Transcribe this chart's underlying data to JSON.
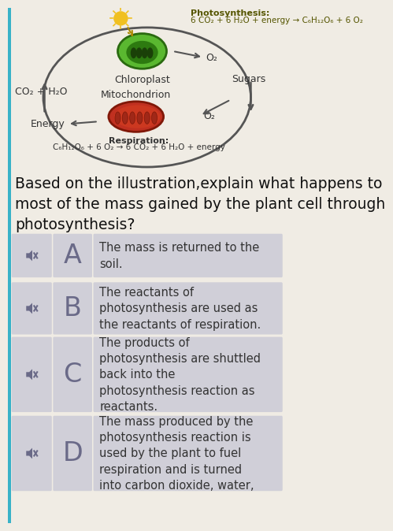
{
  "bg_color": "#f0ece4",
  "diagram_bg": "#f0ece4",
  "title_photo": "Photosynthesis:",
  "title_eq": "6 CO₂ + 6 H₂O + energy → C₆H₁₂O₆ + 6 O₂",
  "chloroplast_label": "Chloroplast",
  "mitochondrion_label": "Mitochondrion",
  "sugars_label": "Sugars",
  "co2_h2o_label": "CO₂ + H₂O",
  "o2_top_label": "O₂",
  "o2_bottom_label": "O₂",
  "energy_label": "Energy",
  "resp_line1": "Respiration:",
  "resp_line2": "C₆H₁₂O₆ + 6 O₂ → 6 CO₂ + 6 H₂O + energy",
  "question_text": "Based on the illustration,explain what happens to\nmost of the mass gained by the plant cell through\nphotosynthesis?",
  "options": [
    {
      "letter": "A",
      "text": "The mass is returned to the\nsoil."
    },
    {
      "letter": "B",
      "text": "The reactants of\nphotosynthesis are used as\nthe reactants of respiration."
    },
    {
      "letter": "C",
      "text": "The products of\nphotosynthesis are shuttled\nback into the\nphotosynthesis reaction as\nreactants."
    },
    {
      "letter": "D",
      "text": "The mass produced by the\nphotosynthesis reaction is\nused by the plant to fuel\nrespiration and is turned\ninto carbon dioxide, water,"
    }
  ],
  "option_box_color": "#d0cfd8",
  "option_letter_color": "#6a6a88",
  "option_text_color": "#333333",
  "question_color": "#111111",
  "arrow_color": "#555555",
  "left_bar_color": "#38b2c8",
  "sun_color": "#f0c020",
  "chloro_outer": "#5ab830",
  "chloro_inner": "#2d7a10",
  "chloro_ring": "#88dd44",
  "mito_outer": "#c03020",
  "mito_inner": "#e05030"
}
